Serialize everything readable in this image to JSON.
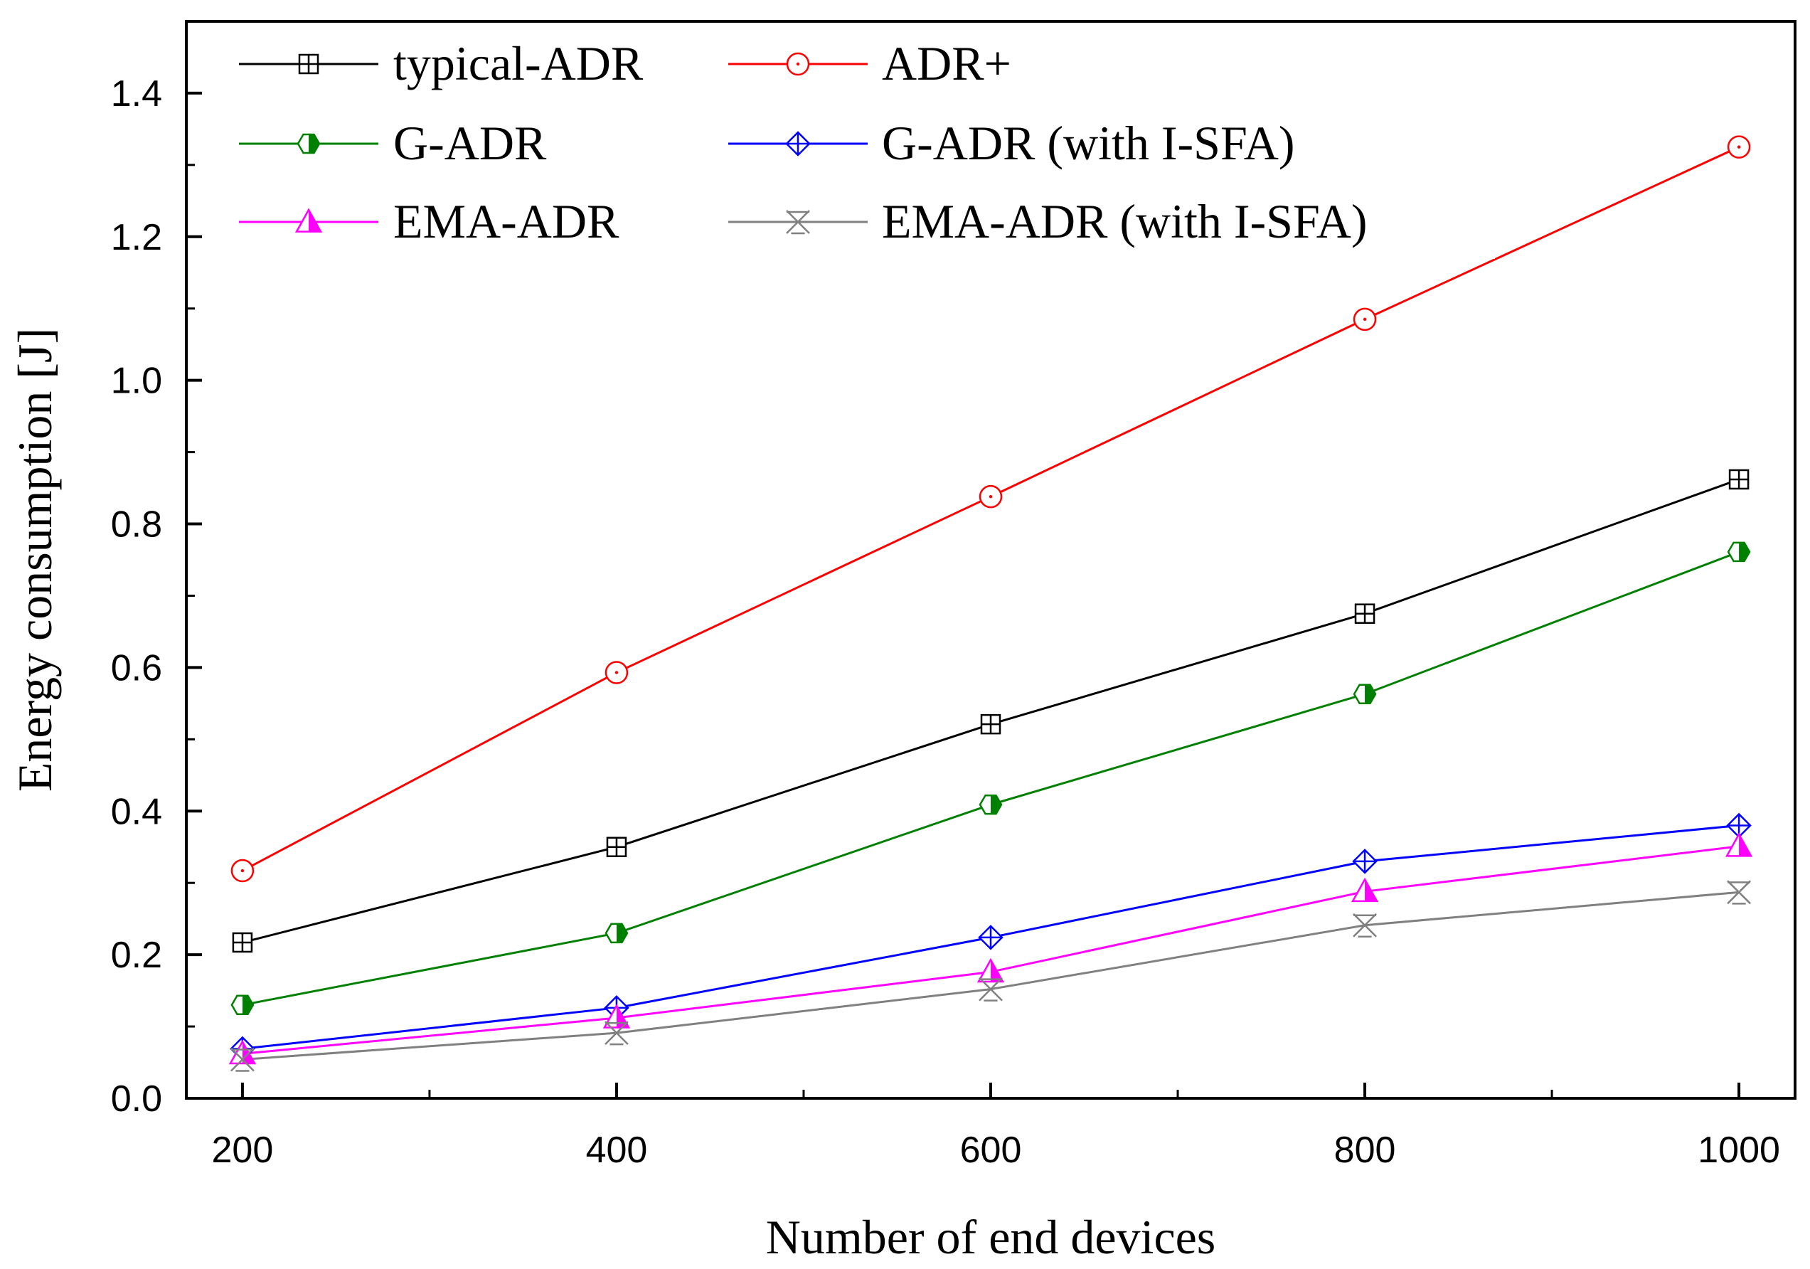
{
  "chart_data": {
    "type": "line",
    "title": "",
    "xlabel": "Number of end devices",
    "ylabel": "Energy consumption [J]",
    "x": [
      200,
      400,
      600,
      800,
      1000
    ],
    "xlim": [
      170,
      1030
    ],
    "ylim": [
      0,
      1.5
    ],
    "xticks": [
      200,
      400,
      600,
      800,
      1000
    ],
    "xtick_labels": [
      "200",
      "400",
      "600",
      "800",
      "1000"
    ],
    "yticks": [
      0,
      0.2,
      0.4,
      0.6,
      0.8,
      1.0,
      1.2,
      1.4
    ],
    "ytick_labels": [
      "0.0",
      "0.2",
      "0.4",
      "0.6",
      "0.8",
      "1.0",
      "1.2",
      "1.4"
    ],
    "grid": false,
    "legend_position": "top-left",
    "series": [
      {
        "name": "typical-ADR",
        "color": "#000000",
        "marker": "square-plus",
        "values": [
          0.217,
          0.35,
          0.521,
          0.675,
          0.862
        ]
      },
      {
        "name": "ADR+",
        "color": "#ff0000",
        "marker": "circle-dot",
        "values": [
          0.317,
          0.593,
          0.838,
          1.085,
          1.325
        ]
      },
      {
        "name": "G-ADR",
        "color": "#008000",
        "marker": "hexagon-half",
        "values": [
          0.13,
          0.23,
          0.409,
          0.563,
          0.761
        ]
      },
      {
        "name": "G-ADR (with I-SFA)",
        "color": "#0000ff",
        "marker": "diamond-plus",
        "values": [
          0.069,
          0.126,
          0.224,
          0.33,
          0.38
        ]
      },
      {
        "name": "EMA-ADR",
        "color": "#ff00ff",
        "marker": "triangle-half",
        "values": [
          0.062,
          0.112,
          0.176,
          0.288,
          0.351
        ]
      },
      {
        "name": "EMA-ADR (with I-SFA)",
        "color": "#808080",
        "marker": "star-x",
        "values": [
          0.054,
          0.091,
          0.152,
          0.241,
          0.287
        ]
      }
    ]
  }
}
